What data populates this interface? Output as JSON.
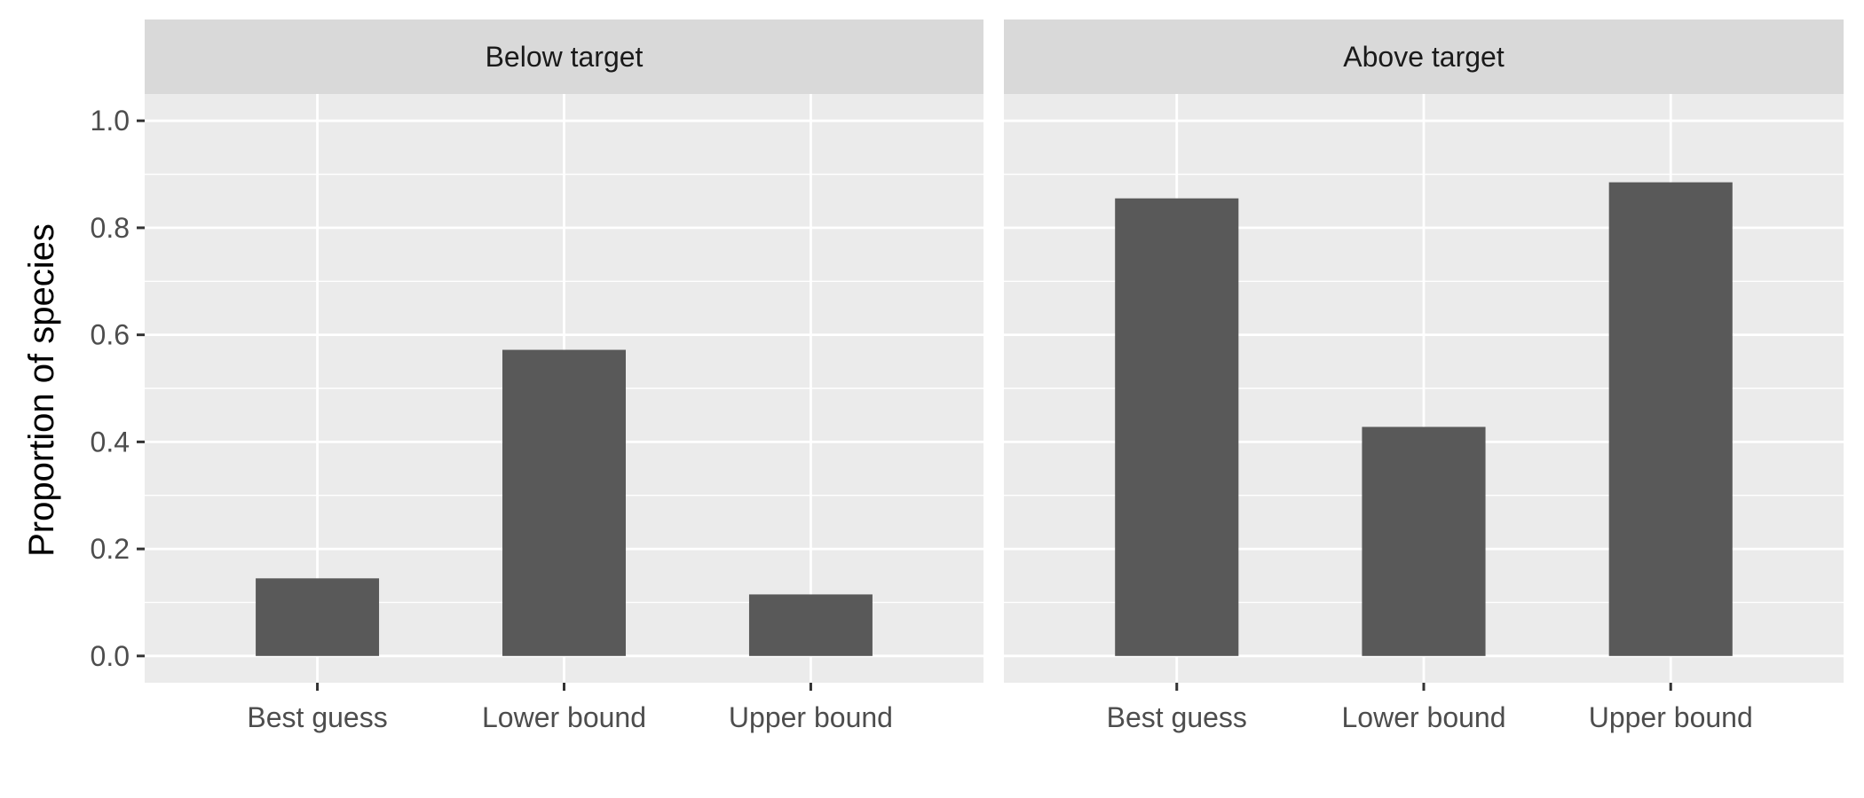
{
  "chart_data": {
    "type": "bar",
    "ylabel": "Proportion of species",
    "xlabel": "",
    "ylim": [
      -0.05,
      1.05
    ],
    "yticks": [
      0.0,
      0.2,
      0.4,
      0.6,
      0.8,
      1.0
    ],
    "ytick_labels": [
      "0.0",
      "0.2",
      "0.4",
      "0.6",
      "0.8",
      "1.0"
    ],
    "categories": [
      "Best guess",
      "Lower bound",
      "Upper bound"
    ],
    "grid": true,
    "bar_color": "#595959",
    "panel_background": "#ebebeb",
    "strip_background": "#d9d9d9",
    "grid_color": "#ffffff",
    "panels": [
      {
        "name": "Below target",
        "values": [
          0.145,
          0.572,
          0.115
        ]
      },
      {
        "name": "Above target",
        "values": [
          0.855,
          0.428,
          0.885
        ]
      }
    ]
  }
}
